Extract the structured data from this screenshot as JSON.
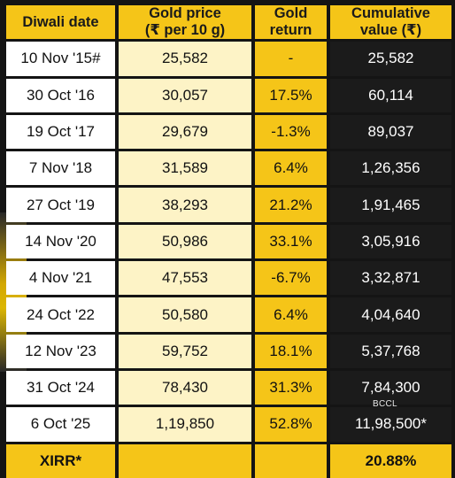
{
  "headers": {
    "date": "Diwali date",
    "price_line1": "Gold price",
    "price_line2": "(₹ per 10 g)",
    "return_line1": "Gold",
    "return_line2": "return",
    "cum_line1": "Cumulative",
    "cum_line2": "value (₹)"
  },
  "rows": [
    {
      "date": "10 Nov '15#",
      "price": "25,582",
      "ret": "-",
      "cum": "25,582"
    },
    {
      "date": "30 Oct '16",
      "price": "30,057",
      "ret": "17.5%",
      "cum": "60,114"
    },
    {
      "date": "19 Oct '17",
      "price": "29,679",
      "ret": "-1.3%",
      "cum": "89,037"
    },
    {
      "date": "7 Nov '18",
      "price": "31,589",
      "ret": "6.4%",
      "cum": "1,26,356"
    },
    {
      "date": "27 Oct '19",
      "price": "38,293",
      "ret": "21.2%",
      "cum": "1,91,465"
    },
    {
      "date": "14 Nov '20",
      "price": "50,986",
      "ret": "33.1%",
      "cum": "3,05,916"
    },
    {
      "date": "4 Nov '21",
      "price": "47,553",
      "ret": "-6.7%",
      "cum": "3,32,871"
    },
    {
      "date": "24 Oct '22",
      "price": "50,580",
      "ret": "6.4%",
      "cum": "4,04,640"
    },
    {
      "date": "12 Nov '23",
      "price": "59,752",
      "ret": "18.1%",
      "cum": "5,37,768"
    },
    {
      "date": "31 Oct '24",
      "price": "78,430",
      "ret": "31.3%",
      "cum": "7,84,300"
    },
    {
      "date": "6 Oct '25",
      "price": "1,19,850",
      "ret": "52.8%",
      "cum": "11,98,500*"
    }
  ],
  "footer": {
    "label": "XIRR*",
    "value": "20.88%"
  },
  "watermark": "BCCL"
}
